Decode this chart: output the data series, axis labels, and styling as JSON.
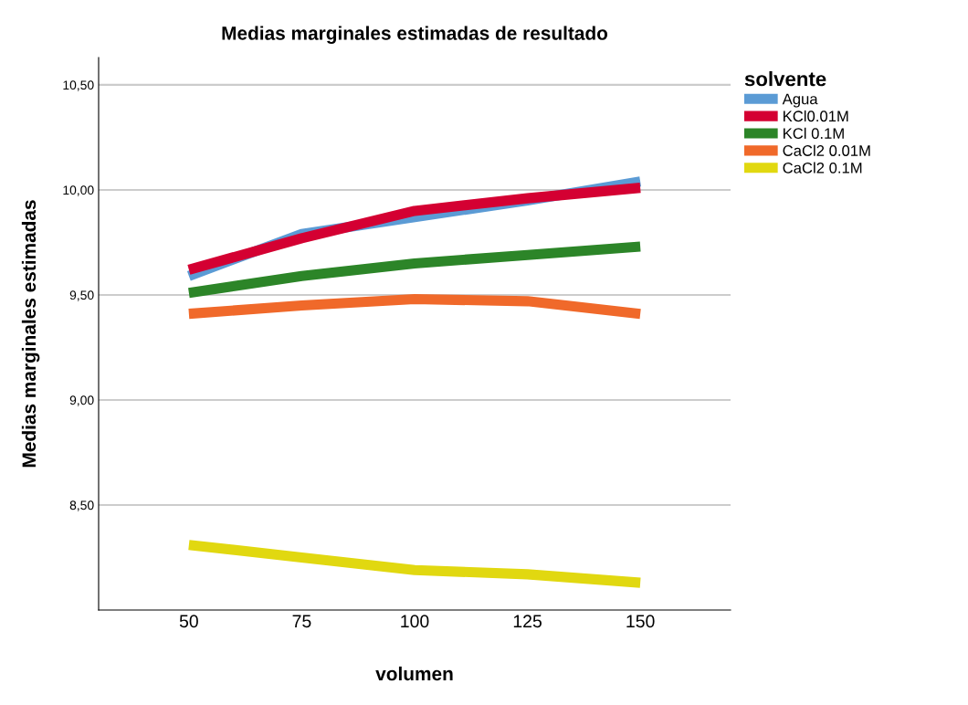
{
  "chart_data": {
    "type": "line",
    "title": "Medias marginales estimadas de resultado",
    "xlabel": "volumen",
    "ylabel": "Medias marginales estimadas",
    "legend_title": "solvente",
    "x": [
      50,
      75,
      100,
      125,
      150
    ],
    "series": [
      {
        "name": "Agua",
        "color": "#5b9bd5",
        "values": [
          9.59,
          9.79,
          9.87,
          9.95,
          10.04
        ]
      },
      {
        "name": "KCl0.01M",
        "color": "#d40032",
        "values": [
          9.62,
          9.77,
          9.9,
          9.96,
          10.01
        ]
      },
      {
        "name": "KCl 0.1M",
        "color": "#2c8528",
        "values": [
          9.51,
          9.59,
          9.65,
          9.69,
          9.73
        ]
      },
      {
        "name": "CaCl2 0.01M",
        "color": "#f0692a",
        "values": [
          9.41,
          9.45,
          9.48,
          9.47,
          9.41
        ]
      },
      {
        "name": "CaCl2 0.1M",
        "color": "#e1d810",
        "values": [
          8.31,
          8.25,
          8.19,
          8.17,
          8.13
        ]
      }
    ],
    "xlim": [
      30,
      170
    ],
    "xticks": [
      50,
      75,
      100,
      125,
      150
    ],
    "ylim": [
      8.0,
      10.63
    ],
    "yticks": [
      {
        "value": 8.5,
        "label": "8,50"
      },
      {
        "value": 9.0,
        "label": "9,00"
      },
      {
        "value": 9.5,
        "label": "9,50"
      },
      {
        "value": 10.0,
        "label": "10,00"
      },
      {
        "value": 10.5,
        "label": "10,50"
      }
    ],
    "grid": "y",
    "legend": "top right",
    "marker": "none",
    "line_style": "solid"
  }
}
